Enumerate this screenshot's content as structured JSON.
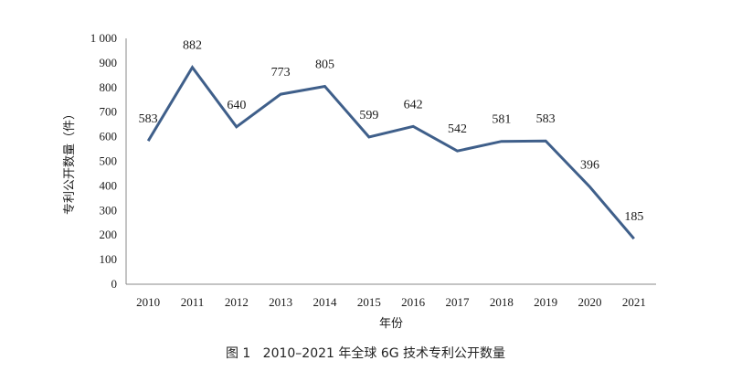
{
  "caption": {
    "label": "图 1",
    "text": "2010–2021 年全球 6G 技术专利公开数量"
  },
  "chart_data": {
    "type": "line",
    "title": "",
    "xlabel": "年份",
    "ylabel": "专利公开数量（件）",
    "x": [
      "2010",
      "2011",
      "2012",
      "2013",
      "2014",
      "2015",
      "2016",
      "2017",
      "2018",
      "2019",
      "2020",
      "2021"
    ],
    "series": [
      {
        "values": [
          583,
          882,
          640,
          773,
          805,
          599,
          642,
          542,
          581,
          583,
          396,
          185
        ]
      }
    ],
    "data_labels": [
      "583",
      "882",
      "640",
      "773",
      "805",
      "599",
      "642",
      "542",
      "581",
      "583",
      "396",
      "185"
    ],
    "ylim": [
      0,
      1000
    ],
    "yticks": [
      0,
      100,
      200,
      300,
      400,
      500,
      600,
      700,
      800,
      900,
      1000
    ],
    "ytick_labels": [
      "0",
      "100",
      "200",
      "300",
      "400",
      "500",
      "600",
      "700",
      "800",
      "900",
      "1 000"
    ],
    "grid": false,
    "legend": "none",
    "line_color": "#3f5f8a"
  }
}
